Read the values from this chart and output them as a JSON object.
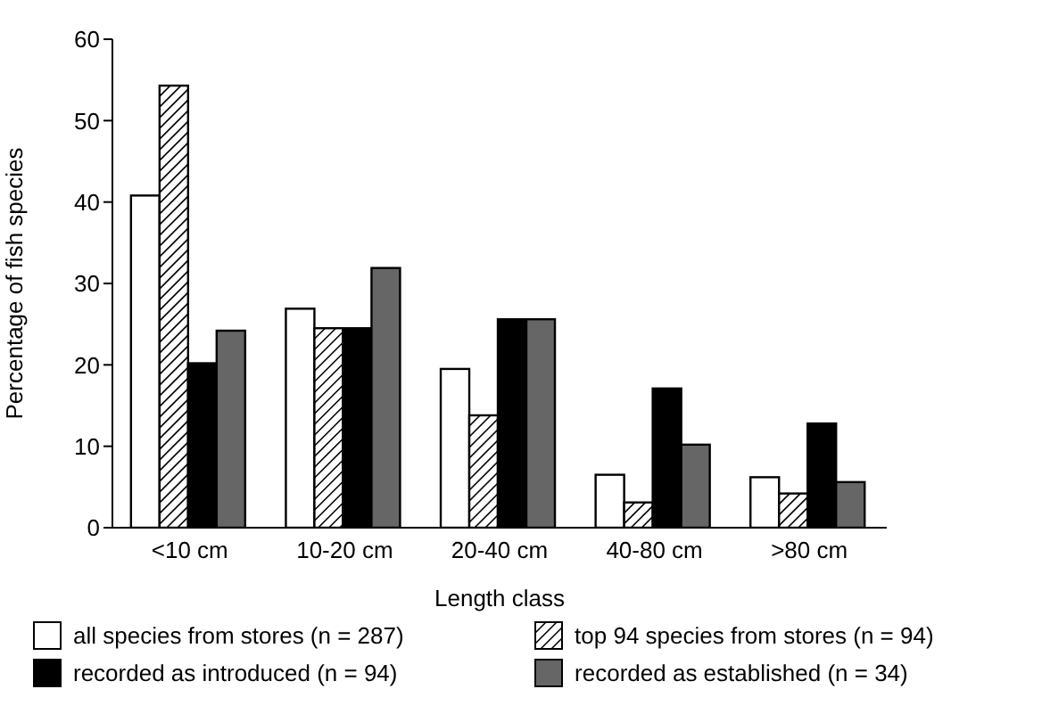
{
  "chart_data": {
    "type": "bar",
    "xlabel": "Length class",
    "ylabel": "Percentage of fish species",
    "categories": [
      "<10  cm",
      "10-20  cm",
      "20-40  cm",
      "40-80  cm",
      ">80  cm"
    ],
    "series": [
      {
        "name": "all species from stores (n = 287)",
        "color": "#ffffff",
        "values": [
          40.8,
          26.9,
          19.5,
          6.5,
          6.2
        ]
      },
      {
        "name": "top 94 species from stores (n = 94)",
        "color": "#ffffff",
        "values": [
          54.3,
          24.5,
          13.8,
          3.1,
          4.2
        ]
      },
      {
        "name": "recorded as introduced (n = 94)",
        "color": "#000000",
        "values": [
          20.2,
          24.5,
          25.6,
          17.1,
          12.8
        ]
      },
      {
        "name": "recorded as established (n = 34)",
        "color": "#666666",
        "values": [
          24.2,
          31.9,
          25.6,
          10.2,
          5.6
        ]
      }
    ],
    "ylim": [
      0,
      60
    ],
    "yticks": [
      0,
      10,
      20,
      30,
      40,
      50,
      60
    ],
    "legend": "bottom"
  }
}
